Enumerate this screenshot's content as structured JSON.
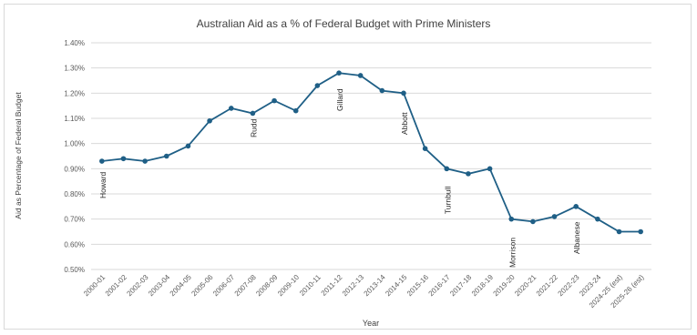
{
  "chart_data": {
    "type": "line",
    "title": "Australian Aid as a % of Federal Budget with Prime Ministers",
    "xlabel": "Year",
    "ylabel": "Aid as Percentage of Federal Budget",
    "ylim": [
      0.5,
      1.4
    ],
    "ytick_labels": [
      "0.50%",
      "0.60%",
      "0.70%",
      "0.80%",
      "0.90%",
      "1.00%",
      "1.10%",
      "1.20%",
      "1.30%",
      "1.40%"
    ],
    "yticks": [
      0.5,
      0.6,
      0.7,
      0.8,
      0.9,
      1.0,
      1.1,
      1.2,
      1.3,
      1.4
    ],
    "grid": true,
    "legend": "none",
    "categories": [
      "2000-01",
      "2001-02",
      "2002-03",
      "2003-04",
      "2004-05",
      "2005-06",
      "2006-07",
      "2007-08",
      "2008-09",
      "2009-10",
      "2010-11",
      "2011-12",
      "2012-13",
      "2013-14",
      "2014-15",
      "2015-16",
      "2016-17",
      "2017-18",
      "2018-19",
      "2019-20",
      "2020-21",
      "2021-22",
      "2022-23",
      "2023-24",
      "2024-25 (est)",
      "2025-26 (est)"
    ],
    "values": [
      0.93,
      0.94,
      0.93,
      0.95,
      0.99,
      1.09,
      1.14,
      1.12,
      1.17,
      1.13,
      1.23,
      1.28,
      1.27,
      1.21,
      1.2,
      0.98,
      0.9,
      0.88,
      0.9,
      0.7,
      0.69,
      0.71,
      0.75,
      0.7,
      0.65,
      0.65
    ],
    "annotations": [
      {
        "text": "Howard",
        "category": "2000-01"
      },
      {
        "text": "Rudd",
        "category": "2007-08"
      },
      {
        "text": "Gillard",
        "category": "2011-12"
      },
      {
        "text": "Abbott",
        "category": "2014-15"
      },
      {
        "text": "Turnbull",
        "category": "2016-17"
      },
      {
        "text": "Morrison",
        "category": "2019-20"
      },
      {
        "text": "Albanese",
        "category": "2022-23"
      }
    ],
    "colors": {
      "line": "#1f5f86",
      "marker": "#1f5f86",
      "grid": "#d9d9d9",
      "text": "#595959",
      "annotation": "#262626"
    }
  }
}
